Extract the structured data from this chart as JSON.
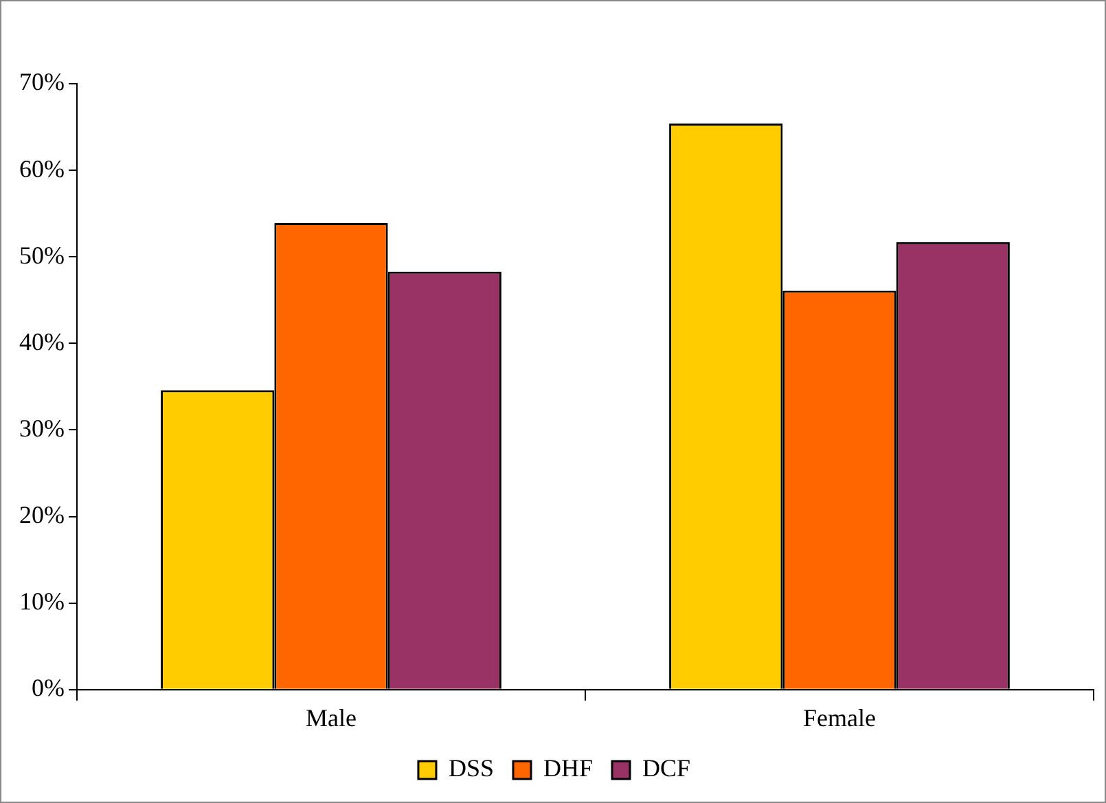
{
  "chart_data": {
    "type": "bar",
    "categories": [
      "Male",
      "Female"
    ],
    "series": [
      {
        "name": "DSS",
        "color": "#ffcc00",
        "values": [
          34.6,
          65.4
        ]
      },
      {
        "name": "DHF",
        "color": "#ff6600",
        "values": [
          53.9,
          46.1
        ]
      },
      {
        "name": "DCF",
        "color": "#993366",
        "values": [
          48.3,
          51.7
        ]
      }
    ],
    "ylim": [
      0,
      70
    ],
    "yticks": [
      {
        "value": 0,
        "label": "0%"
      },
      {
        "value": 10,
        "label": "10%"
      },
      {
        "value": 20,
        "label": "20%"
      },
      {
        "value": 30,
        "label": "30%"
      },
      {
        "value": 40,
        "label": "40%"
      },
      {
        "value": 50,
        "label": "50%"
      },
      {
        "value": 60,
        "label": "60%"
      },
      {
        "value": 70,
        "label": "70%"
      }
    ],
    "legend": "bottom"
  }
}
